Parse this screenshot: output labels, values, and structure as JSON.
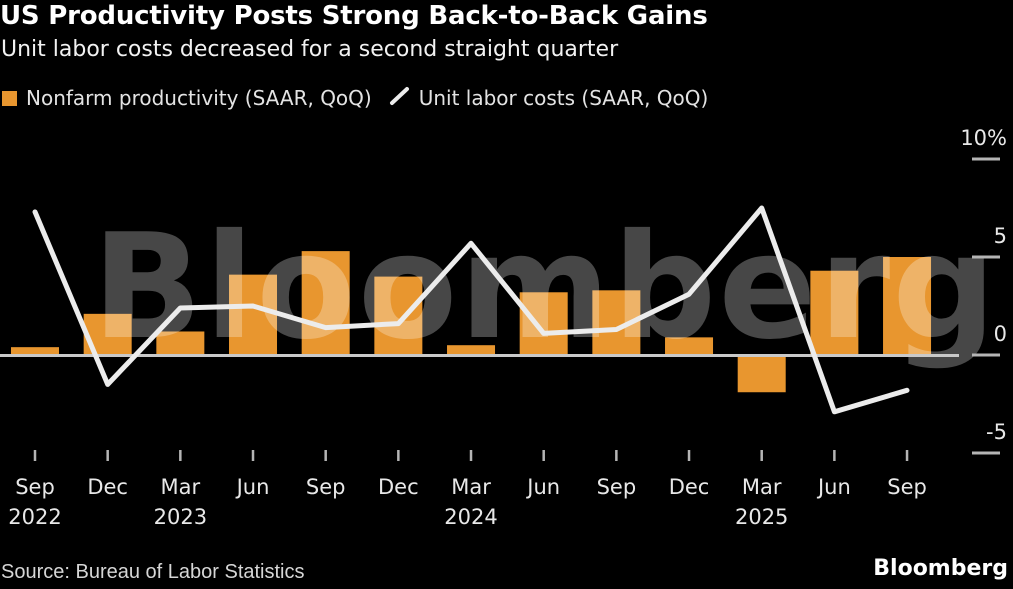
{
  "header": {
    "title": "US Productivity Posts Strong Back-to-Back Gains",
    "subtitle": "Unit labor costs decreased for a second straight quarter"
  },
  "legend": {
    "items": [
      {
        "label": "Nonfarm productivity (SAAR, QoQ)",
        "marker": "square",
        "color": "#E8962F"
      },
      {
        "label": "Unit labor costs (SAAR, QoQ)",
        "marker": "line",
        "color": "#ECECEC"
      }
    ]
  },
  "chart_data": {
    "type": "combo",
    "categories": [
      "Sep 2022",
      "Dec 2022",
      "Mar 2023",
      "Jun 2023",
      "Sep 2023",
      "Dec 2023",
      "Mar 2024",
      "Jun 2024",
      "Sep 2024",
      "Dec 2024",
      "Mar 2025",
      "Jun 2025",
      "Sep 2025"
    ],
    "x_tick_months": [
      "Sep",
      "Dec",
      "Mar",
      "Jun",
      "Sep",
      "Dec",
      "Mar",
      "Jun",
      "Sep",
      "Dec",
      "Mar",
      "Jun",
      "Sep"
    ],
    "x_years": [
      {
        "index": 0,
        "label": "2022"
      },
      {
        "index": 2,
        "label": "2023"
      },
      {
        "index": 6,
        "label": "2024"
      },
      {
        "index": 10,
        "label": "2025"
      }
    ],
    "series": [
      {
        "name": "Nonfarm productivity (SAAR, QoQ)",
        "type": "bar",
        "color": "#E8962F",
        "values": [
          0.4,
          2.1,
          1.2,
          4.1,
          5.3,
          4.0,
          0.5,
          3.2,
          3.3,
          0.9,
          -1.9,
          4.3,
          5.0
        ]
      },
      {
        "name": "Unit labor costs (SAAR, QoQ)",
        "type": "line",
        "color": "#ECECEC",
        "values": [
          7.3,
          -1.5,
          2.4,
          2.5,
          1.4,
          1.6,
          5.7,
          1.1,
          1.3,
          3.1,
          7.5,
          -2.9,
          -1.8
        ]
      }
    ],
    "y_ticks": [
      {
        "value": 10,
        "label": "10%"
      },
      {
        "value": 5,
        "label": "5"
      },
      {
        "value": 0,
        "label": "0"
      },
      {
        "value": -5,
        "label": "-5"
      }
    ],
    "ylim": [
      -6.5,
      11.5
    ],
    "grid": "zero-line-only",
    "legend_position": "top",
    "watermark": "Bloomberg"
  },
  "footer": {
    "source": "Source: Bureau of Labor Statistics",
    "brand": "Bloomberg"
  }
}
